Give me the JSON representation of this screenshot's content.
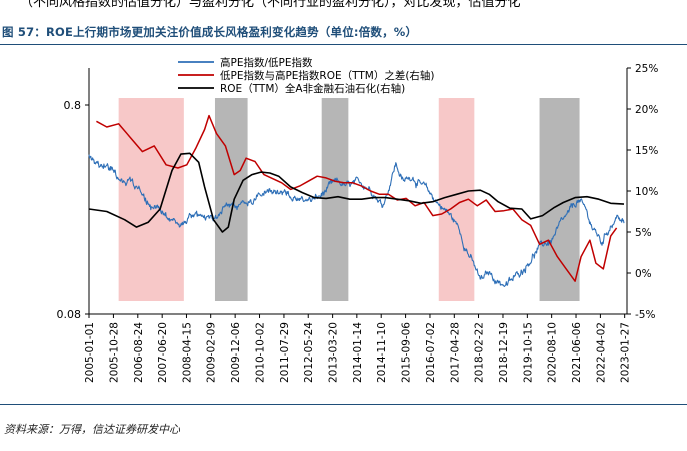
{
  "header": {
    "cutoff_text": "（不同风格指数的估值分化）与盈利分化（不同行业的盈利分化），对比发现，估值分化",
    "figure_title": "图 57：ROE上行期市场更加关注价值成长风格盈利变化趋势（单位:倍数，%）"
  },
  "footer": {
    "source": "资料来源：万得，信达证券研发中心"
  },
  "colors": {
    "pe_ratio": "#2e6fb7",
    "roe_gap": "#c00000",
    "roe_total": "#000000",
    "up_band": "#f4b6b6",
    "down_band": "#b2b2b2"
  },
  "chart_data": {
    "type": "line",
    "title": "ROE上行期市场更加关注价值成长风格盈利变化趋势",
    "x_range": [
      2005.0,
      2023.15
    ],
    "x_ticks": [
      "2005-01-01",
      "2005-10-28",
      "2006-08-24",
      "2007-06-20",
      "2008-04-15",
      "2009-02-09",
      "2009-12-06",
      "2010-10-02",
      "2011-07-29",
      "2012-05-24",
      "2013-03-20",
      "2014-01-14",
      "2014-11-10",
      "2015-09-06",
      "2016-07-02",
      "2017-04-28",
      "2018-02-22",
      "2018-12-19",
      "2019-10-15",
      "2020-08-10",
      "2021-06-06",
      "2022-04-02",
      "2023-01-27"
    ],
    "left_axis": {
      "scale": "log",
      "range": [
        0.08,
        0.8
      ],
      "ticks": [
        "0.8",
        "0.08"
      ]
    },
    "right_axis": {
      "range": [
        -5,
        25
      ],
      "ticks": [
        "25%",
        "20%",
        "15%",
        "10%",
        "5%",
        "0%",
        "-5%"
      ]
    },
    "legend": {
      "position": "top-center",
      "entries": [
        "高PE指数/低PE指数",
        "低PE指数与高PE指数ROE（TTM）之差(右轴)",
        "ROE（TTM）全A非金融石油石化(右轴)"
      ]
    },
    "shaded_periods": [
      {
        "type": "up",
        "start": 2006.0,
        "end": 2008.2
      },
      {
        "type": "down",
        "start": 2009.25,
        "end": 2010.35
      },
      {
        "type": "down",
        "start": 2012.85,
        "end": 2013.75
      },
      {
        "type": "up",
        "start": 2016.8,
        "end": 2018.0
      },
      {
        "type": "down",
        "start": 2020.2,
        "end": 2021.55
      }
    ],
    "series": [
      {
        "name": "高PE指数/低PE指数",
        "axis": "left",
        "style": "noisy",
        "points": [
          [
            2005.0,
            0.45
          ],
          [
            2005.3,
            0.42
          ],
          [
            2005.6,
            0.4
          ],
          [
            2005.9,
            0.37
          ],
          [
            2006.2,
            0.345
          ],
          [
            2006.5,
            0.33
          ],
          [
            2006.8,
            0.3
          ],
          [
            2007.1,
            0.26
          ],
          [
            2007.4,
            0.245
          ],
          [
            2007.6,
            0.23
          ],
          [
            2007.8,
            0.225
          ],
          [
            2008.0,
            0.215
          ],
          [
            2008.3,
            0.225
          ],
          [
            2008.6,
            0.23
          ],
          [
            2008.9,
            0.235
          ],
          [
            2009.2,
            0.24
          ],
          [
            2009.5,
            0.25
          ],
          [
            2009.8,
            0.26
          ],
          [
            2010.1,
            0.27
          ],
          [
            2010.4,
            0.285
          ],
          [
            2010.7,
            0.3
          ],
          [
            2011.0,
            0.31
          ],
          [
            2011.3,
            0.305
          ],
          [
            2011.6,
            0.295
          ],
          [
            2011.9,
            0.285
          ],
          [
            2012.2,
            0.275
          ],
          [
            2012.5,
            0.28
          ],
          [
            2012.8,
            0.29
          ],
          [
            2013.1,
            0.32
          ],
          [
            2013.4,
            0.34
          ],
          [
            2013.7,
            0.325
          ],
          [
            2014.0,
            0.33
          ],
          [
            2014.3,
            0.335
          ],
          [
            2014.6,
            0.31
          ],
          [
            2014.9,
            0.265
          ],
          [
            2015.1,
            0.32
          ],
          [
            2015.35,
            0.42
          ],
          [
            2015.6,
            0.34
          ],
          [
            2015.9,
            0.37
          ],
          [
            2016.2,
            0.33
          ],
          [
            2016.5,
            0.3
          ],
          [
            2016.8,
            0.27
          ],
          [
            2017.1,
            0.245
          ],
          [
            2017.4,
            0.215
          ],
          [
            2017.7,
            0.17
          ],
          [
            2017.95,
            0.14
          ],
          [
            2018.2,
            0.115
          ],
          [
            2018.5,
            0.125
          ],
          [
            2018.8,
            0.115
          ],
          [
            2019.1,
            0.11
          ],
          [
            2019.4,
            0.12
          ],
          [
            2019.7,
            0.135
          ],
          [
            2020.0,
            0.155
          ],
          [
            2020.3,
            0.17
          ],
          [
            2020.6,
            0.18
          ],
          [
            2020.9,
            0.21
          ],
          [
            2021.2,
            0.24
          ],
          [
            2021.5,
            0.28
          ],
          [
            2021.75,
            0.25
          ],
          [
            2022.0,
            0.205
          ],
          [
            2022.3,
            0.175
          ],
          [
            2022.6,
            0.215
          ],
          [
            2022.85,
            0.235
          ],
          [
            2023.05,
            0.215
          ]
        ]
      },
      {
        "name": "低PE指数与高PE指数ROE（TTM）之差(右轴)",
        "axis": "right",
        "style": "smooth",
        "points": [
          [
            2005.25,
            18.5
          ],
          [
            2005.6,
            17.8
          ],
          [
            2006.0,
            18.2
          ],
          [
            2006.4,
            16.5
          ],
          [
            2006.8,
            14.8
          ],
          [
            2007.2,
            15.5
          ],
          [
            2007.6,
            13.2
          ],
          [
            2008.0,
            12.8
          ],
          [
            2008.3,
            13.2
          ],
          [
            2008.6,
            15.2
          ],
          [
            2008.9,
            17.5
          ],
          [
            2009.05,
            19.2
          ],
          [
            2009.3,
            17.0
          ],
          [
            2009.6,
            15.5
          ],
          [
            2009.9,
            12.0
          ],
          [
            2010.1,
            12.5
          ],
          [
            2010.3,
            14.0
          ],
          [
            2010.6,
            13.6
          ],
          [
            2010.9,
            12.0
          ],
          [
            2011.2,
            11.5
          ],
          [
            2011.5,
            11.0
          ],
          [
            2011.8,
            10.2
          ],
          [
            2012.1,
            10.6
          ],
          [
            2012.4,
            11.2
          ],
          [
            2012.7,
            11.8
          ],
          [
            2013.0,
            11.6
          ],
          [
            2013.3,
            11.2
          ],
          [
            2013.6,
            11.0
          ],
          [
            2013.9,
            11.0
          ],
          [
            2014.2,
            10.6
          ],
          [
            2014.5,
            10.0
          ],
          [
            2014.8,
            9.6
          ],
          [
            2015.1,
            9.6
          ],
          [
            2015.4,
            8.9
          ],
          [
            2015.7,
            9.1
          ],
          [
            2016.0,
            8.2
          ],
          [
            2016.3,
            8.6
          ],
          [
            2016.6,
            7.0
          ],
          [
            2016.9,
            7.2
          ],
          [
            2017.2,
            7.8
          ],
          [
            2017.5,
            8.6
          ],
          [
            2017.8,
            9.0
          ],
          [
            2018.1,
            8.2
          ],
          [
            2018.4,
            8.9
          ],
          [
            2018.7,
            7.5
          ],
          [
            2019.0,
            7.6
          ],
          [
            2019.3,
            7.8
          ],
          [
            2019.6,
            6.5
          ],
          [
            2019.9,
            5.8
          ],
          [
            2020.2,
            3.5
          ],
          [
            2020.5,
            4.0
          ],
          [
            2020.8,
            2.0
          ],
          [
            2021.1,
            0.5
          ],
          [
            2021.4,
            -1.0
          ],
          [
            2021.6,
            2.0
          ],
          [
            2021.9,
            4.0
          ],
          [
            2022.1,
            1.2
          ],
          [
            2022.35,
            0.5
          ],
          [
            2022.6,
            4.5
          ],
          [
            2022.8,
            5.5
          ]
        ]
      },
      {
        "name": "ROE（TTM）全A非金融石油石化(右轴)",
        "axis": "right",
        "style": "smooth",
        "points": [
          [
            2005.0,
            7.8
          ],
          [
            2005.6,
            7.5
          ],
          [
            2006.2,
            6.5
          ],
          [
            2006.6,
            5.6
          ],
          [
            2007.0,
            6.2
          ],
          [
            2007.4,
            7.8
          ],
          [
            2007.8,
            12.5
          ],
          [
            2008.1,
            14.5
          ],
          [
            2008.4,
            14.6
          ],
          [
            2008.7,
            13.5
          ],
          [
            2008.9,
            10.5
          ],
          [
            2009.2,
            6.5
          ],
          [
            2009.5,
            5.0
          ],
          [
            2009.7,
            5.6
          ],
          [
            2009.9,
            9.0
          ],
          [
            2010.2,
            11.3
          ],
          [
            2010.5,
            12.0
          ],
          [
            2010.8,
            12.3
          ],
          [
            2011.1,
            12.2
          ],
          [
            2011.4,
            11.8
          ],
          [
            2011.8,
            10.5
          ],
          [
            2012.2,
            9.8
          ],
          [
            2012.6,
            9.2
          ],
          [
            2013.0,
            9.1
          ],
          [
            2013.4,
            9.3
          ],
          [
            2013.8,
            9.0
          ],
          [
            2014.2,
            9.0
          ],
          [
            2014.6,
            9.2
          ],
          [
            2015.0,
            9.2
          ],
          [
            2015.4,
            9.0
          ],
          [
            2015.8,
            8.8
          ],
          [
            2016.2,
            8.5
          ],
          [
            2016.6,
            8.7
          ],
          [
            2017.0,
            9.2
          ],
          [
            2017.4,
            9.6
          ],
          [
            2017.8,
            10.0
          ],
          [
            2018.2,
            10.1
          ],
          [
            2018.5,
            9.6
          ],
          [
            2018.8,
            8.7
          ],
          [
            2019.2,
            7.9
          ],
          [
            2019.6,
            7.8
          ],
          [
            2019.9,
            6.6
          ],
          [
            2020.3,
            7.0
          ],
          [
            2020.7,
            8.0
          ],
          [
            2021.0,
            8.6
          ],
          [
            2021.4,
            9.2
          ],
          [
            2021.8,
            9.3
          ],
          [
            2022.2,
            9.0
          ],
          [
            2022.6,
            8.5
          ],
          [
            2023.05,
            8.4
          ]
        ]
      }
    ]
  }
}
